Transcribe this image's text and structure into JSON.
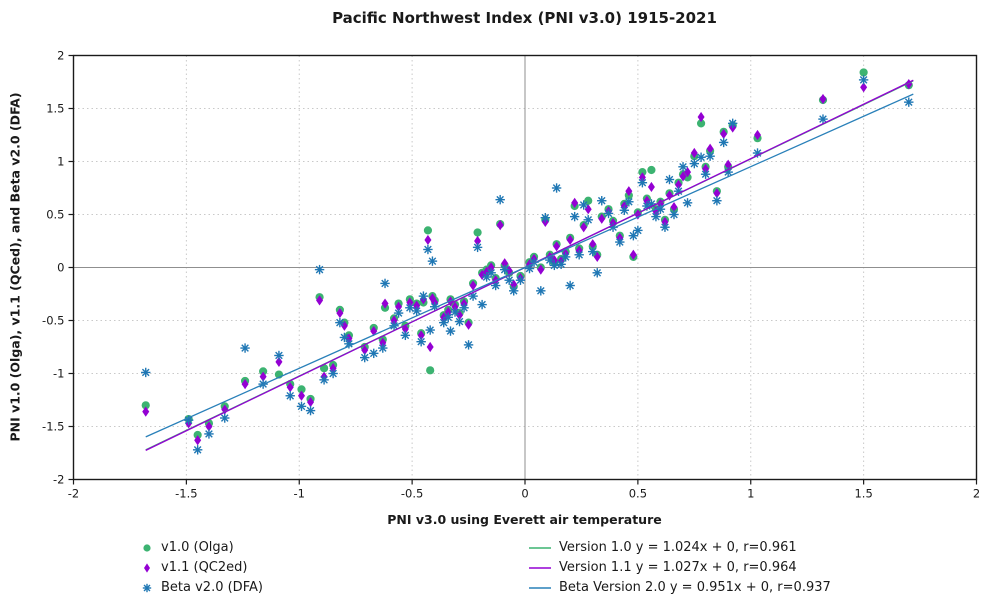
{
  "chart_data": {
    "type": "scatter",
    "title": "Pacific Northwest Index (PNI v3.0) 1915-2021",
    "xlabel": "PNI v3.0 using Everett air temperature",
    "ylabel": "PNI v1.0 (Olga), v1.1 (QCed), and Beta v2.0 (DFA)",
    "xlim": [
      -2,
      2
    ],
    "ylim": [
      -2,
      2
    ],
    "xticks": [
      "-2",
      "-1.5",
      "-1",
      "-0.5",
      "0",
      "0.5",
      "1",
      "1.5",
      "2"
    ],
    "yticks": [
      "-2",
      "-1.5",
      "-1",
      "-0.5",
      "0",
      "0.5",
      "1",
      "1.5",
      "2"
    ],
    "grid": "dotted gray every 0.5, solid gray zero lines, legend below plot",
    "series": [
      {
        "name": "v1.0 (Olga)",
        "marker": "circle",
        "color": "#3cb371"
      },
      {
        "name": "v1.1 (QC2ed)",
        "marker": "diamond",
        "color": "#9400d3"
      },
      {
        "name": "Beta v2.0 (DFA)",
        "marker": "asterisk",
        "color": "#1f77b4"
      }
    ],
    "fit_lines": [
      {
        "label": "Version 1.0 y = 1.024x + 0, r=0.961",
        "slope": 1.024,
        "intercept": 0,
        "r": 0.961,
        "color": "#3cb371"
      },
      {
        "label": "Version 1.1 y = 1.027x + 0, r=0.964",
        "slope": 1.027,
        "intercept": 0,
        "r": 0.964,
        "color": "#9400d3"
      },
      {
        "label": "Beta Version 2.0 y = 0.951x + 0, r=0.937",
        "slope": 0.951,
        "intercept": 0,
        "r": 0.937,
        "color": "#2980b9"
      }
    ],
    "fit_x_range": [
      -1.68,
      1.72
    ],
    "points_format": [
      "x",
      "y_v1.0",
      "y_v1.1",
      "y_beta_v2.0"
    ],
    "points": [
      [
        -1.68,
        -1.3,
        -1.36,
        -0.99
      ],
      [
        -1.49,
        -1.43,
        -1.47,
        -1.44
      ],
      [
        -1.45,
        -1.58,
        -1.63,
        -1.72
      ],
      [
        -1.4,
        -1.47,
        -1.5,
        -1.57
      ],
      [
        -1.33,
        -1.31,
        -1.34,
        -1.42
      ],
      [
        -1.24,
        -1.07,
        -1.1,
        -0.76
      ],
      [
        -1.16,
        -0.98,
        -1.03,
        -1.1
      ],
      [
        -1.09,
        -1.01,
        -0.89,
        -0.83
      ],
      [
        -1.04,
        -1.1,
        -1.13,
        -1.21
      ],
      [
        -0.99,
        -1.15,
        -1.21,
        -1.31
      ],
      [
        -0.95,
        -1.24,
        -1.27,
        -1.35
      ],
      [
        -0.91,
        -0.28,
        -0.31,
        -0.02
      ],
      [
        -0.89,
        -0.95,
        -1.03,
        -1.06
      ],
      [
        -0.85,
        -0.92,
        -0.95,
        -1.0
      ],
      [
        -0.82,
        -0.4,
        -0.43,
        -0.52
      ],
      [
        -0.8,
        -0.52,
        -0.55,
        -0.66
      ],
      [
        -0.78,
        -0.64,
        -0.67,
        -0.72
      ],
      [
        -0.71,
        -0.75,
        -0.78,
        -0.85
      ],
      [
        -0.67,
        -0.57,
        -0.6,
        -0.81
      ],
      [
        -0.63,
        -0.68,
        -0.71,
        -0.76
      ],
      [
        -0.62,
        -0.38,
        -0.34,
        -0.15
      ],
      [
        -0.58,
        -0.48,
        -0.5,
        -0.55
      ],
      [
        -0.56,
        -0.34,
        -0.37,
        -0.43
      ],
      [
        -0.53,
        -0.55,
        -0.58,
        -0.64
      ],
      [
        -0.51,
        -0.3,
        -0.33,
        -0.38
      ],
      [
        -0.48,
        -0.34,
        -0.36,
        -0.41
      ],
      [
        -0.46,
        -0.62,
        -0.64,
        -0.7
      ],
      [
        -0.45,
        -0.33,
        -0.3,
        -0.27
      ],
      [
        -0.43,
        0.35,
        0.26,
        0.17
      ],
      [
        -0.42,
        -0.97,
        -0.75,
        -0.59
      ],
      [
        -0.41,
        -0.27,
        -0.29,
        0.06
      ],
      [
        -0.4,
        -0.31,
        -0.33,
        -0.37
      ],
      [
        -0.36,
        -0.45,
        -0.47,
        -0.52
      ],
      [
        -0.34,
        -0.4,
        -0.42,
        -0.47
      ],
      [
        -0.33,
        -0.3,
        -0.32,
        -0.6
      ],
      [
        -0.31,
        -0.35,
        -0.37,
        -0.42
      ],
      [
        -0.29,
        -0.43,
        -0.45,
        -0.51
      ],
      [
        -0.27,
        -0.32,
        -0.34,
        -0.38
      ],
      [
        -0.25,
        -0.52,
        -0.54,
        -0.73
      ],
      [
        -0.23,
        -0.15,
        -0.17,
        -0.27
      ],
      [
        -0.21,
        0.33,
        0.25,
        0.19
      ],
      [
        -0.19,
        -0.05,
        -0.07,
        -0.35
      ],
      [
        -0.17,
        -0.02,
        -0.04,
        -0.09
      ],
      [
        -0.15,
        0.02,
        0.0,
        -0.05
      ],
      [
        -0.13,
        -0.1,
        -0.12,
        -0.17
      ],
      [
        -0.11,
        0.41,
        0.4,
        0.64
      ],
      [
        -0.09,
        0.02,
        0.04,
        -0.02
      ],
      [
        -0.07,
        -0.05,
        -0.03,
        -0.12
      ],
      [
        -0.05,
        -0.18,
        -0.16,
        -0.22
      ],
      [
        -0.02,
        -0.08,
        -0.1,
        -0.12
      ],
      [
        0.02,
        0.05,
        0.03,
        -0.01
      ],
      [
        0.04,
        0.1,
        0.08,
        0.05
      ],
      [
        0.07,
        0.0,
        -0.02,
        -0.22
      ],
      [
        0.09,
        0.45,
        0.43,
        0.47
      ],
      [
        0.11,
        0.12,
        0.1,
        0.07
      ],
      [
        0.13,
        0.05,
        0.07,
        0.02
      ],
      [
        0.14,
        0.22,
        0.2,
        0.75
      ],
      [
        0.16,
        0.08,
        0.06,
        0.03
      ],
      [
        0.18,
        0.15,
        0.13,
        0.1
      ],
      [
        0.2,
        0.28,
        0.26,
        -0.17
      ],
      [
        0.22,
        0.58,
        0.61,
        0.48
      ],
      [
        0.24,
        0.18,
        0.16,
        0.12
      ],
      [
        0.26,
        0.4,
        0.38,
        0.59
      ],
      [
        0.28,
        0.63,
        0.55,
        0.45
      ],
      [
        0.3,
        0.2,
        0.22,
        0.15
      ],
      [
        0.32,
        0.12,
        0.1,
        -0.05
      ],
      [
        0.34,
        0.48,
        0.46,
        0.63
      ],
      [
        0.37,
        0.55,
        0.53,
        0.51
      ],
      [
        0.39,
        0.44,
        0.42,
        0.38
      ],
      [
        0.42,
        0.3,
        0.28,
        0.24
      ],
      [
        0.44,
        0.6,
        0.58,
        0.54
      ],
      [
        0.46,
        0.68,
        0.72,
        0.62
      ],
      [
        0.48,
        0.1,
        0.12,
        0.3
      ],
      [
        0.5,
        0.52,
        0.5,
        0.35
      ],
      [
        0.52,
        0.9,
        0.85,
        0.8
      ],
      [
        0.54,
        0.65,
        0.63,
        0.58
      ],
      [
        0.56,
        0.92,
        0.76,
        0.6
      ],
      [
        0.58,
        0.55,
        0.53,
        0.48
      ],
      [
        0.6,
        0.62,
        0.6,
        0.55
      ],
      [
        0.62,
        0.45,
        0.43,
        0.38
      ],
      [
        0.64,
        0.7,
        0.68,
        0.83
      ],
      [
        0.66,
        0.55,
        0.57,
        0.5
      ],
      [
        0.68,
        0.8,
        0.78,
        0.72
      ],
      [
        0.7,
        0.88,
        0.86,
        0.95
      ],
      [
        0.72,
        0.85,
        0.9,
        0.61
      ],
      [
        0.75,
        1.05,
        1.08,
        0.98
      ],
      [
        0.78,
        1.36,
        1.42,
        1.04
      ],
      [
        0.8,
        0.95,
        0.93,
        0.88
      ],
      [
        0.82,
        1.1,
        1.12,
        1.05
      ],
      [
        0.85,
        0.72,
        0.7,
        0.63
      ],
      [
        0.88,
        1.28,
        1.26,
        1.18
      ],
      [
        0.9,
        0.95,
        0.97,
        0.9
      ],
      [
        0.92,
        1.34,
        1.32,
        1.36
      ],
      [
        1.03,
        1.22,
        1.25,
        1.08
      ],
      [
        1.32,
        1.58,
        1.59,
        1.4
      ],
      [
        1.5,
        1.84,
        1.7,
        1.77
      ],
      [
        1.7,
        1.72,
        1.73,
        1.56
      ]
    ]
  }
}
